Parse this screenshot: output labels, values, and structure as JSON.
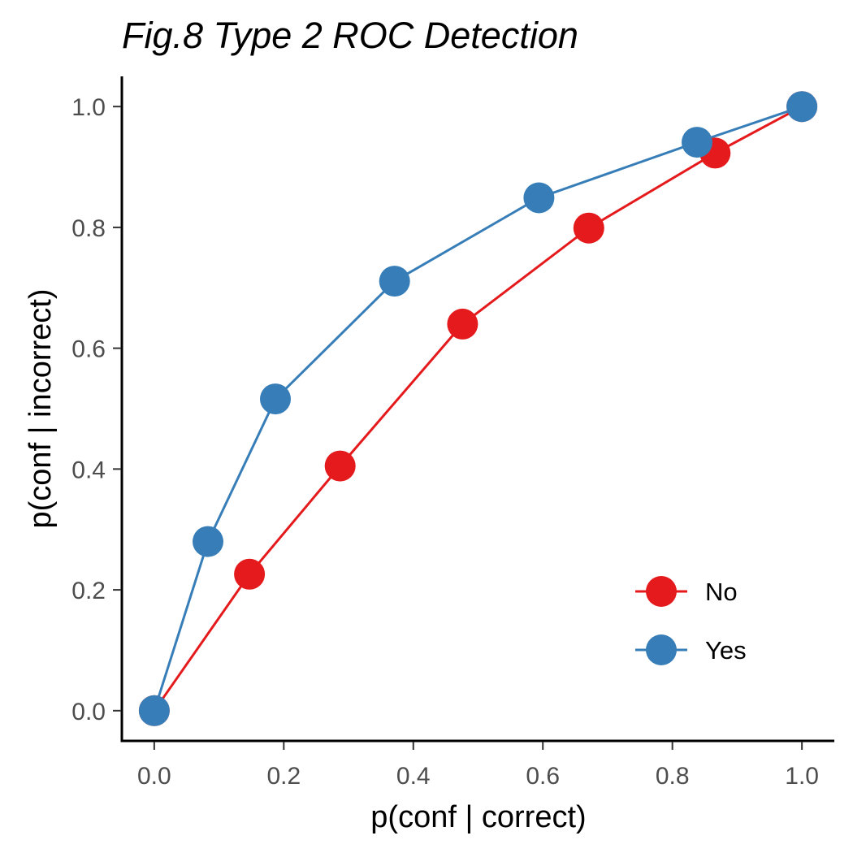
{
  "chart_data": {
    "type": "line",
    "title": "Fig.8 Type 2 ROC Detection",
    "xlabel": "p(conf | correct)",
    "ylabel": "p(conf | incorrect)",
    "xlim": [
      -0.05,
      1.05
    ],
    "ylim": [
      -0.05,
      1.05
    ],
    "xticks": [
      0.0,
      0.2,
      0.4,
      0.6,
      0.8,
      1.0
    ],
    "yticks": [
      0.0,
      0.2,
      0.4,
      0.6,
      0.8,
      1.0
    ],
    "xtick_labels": [
      "0.0",
      "0.2",
      "0.4",
      "0.6",
      "0.8",
      "1.0"
    ],
    "ytick_labels": [
      "0.0",
      "0.2",
      "0.4",
      "0.6",
      "0.8",
      "1.0"
    ],
    "grid": false,
    "legend_position": "bottom-right",
    "series": [
      {
        "name": "No",
        "color": "#e41a1c",
        "x": [
          0.0,
          0.147,
          0.287,
          0.476,
          0.671,
          0.866,
          1.0
        ],
        "y": [
          0.0,
          0.226,
          0.405,
          0.64,
          0.799,
          0.923,
          1.0
        ]
      },
      {
        "name": "Yes",
        "color": "#377eb8",
        "x": [
          0.0,
          0.083,
          0.187,
          0.371,
          0.594,
          0.838,
          1.0
        ],
        "y": [
          0.0,
          0.28,
          0.516,
          0.711,
          0.849,
          0.941,
          1.0
        ]
      }
    ]
  }
}
